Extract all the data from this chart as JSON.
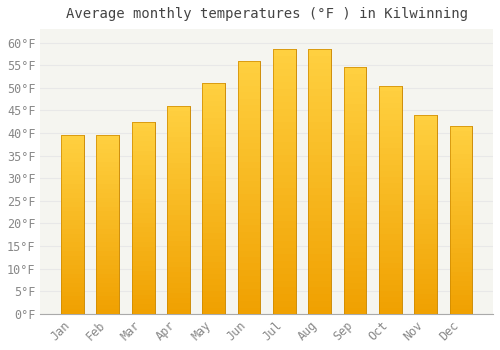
{
  "title": "Average monthly temperatures (°F ) in Kilwinning",
  "months": [
    "Jan",
    "Feb",
    "Mar",
    "Apr",
    "May",
    "Jun",
    "Jul",
    "Aug",
    "Sep",
    "Oct",
    "Nov",
    "Dec"
  ],
  "values": [
    39.5,
    39.5,
    42.5,
    46.0,
    51.0,
    56.0,
    58.5,
    58.5,
    54.5,
    50.5,
    44.0,
    41.5
  ],
  "bar_color_light": "#FFD060",
  "bar_color_dark": "#F0A000",
  "bar_edge_color": "#CC8800",
  "background_color": "#FFFFFF",
  "plot_bg_color": "#F5F5F0",
  "grid_color": "#E8E8E8",
  "yticks": [
    0,
    5,
    10,
    15,
    20,
    25,
    30,
    35,
    40,
    45,
    50,
    55,
    60
  ],
  "ylim": [
    0,
    63
  ],
  "title_fontsize": 10,
  "tick_fontsize": 8.5,
  "title_color": "#444444",
  "tick_color": "#888888"
}
